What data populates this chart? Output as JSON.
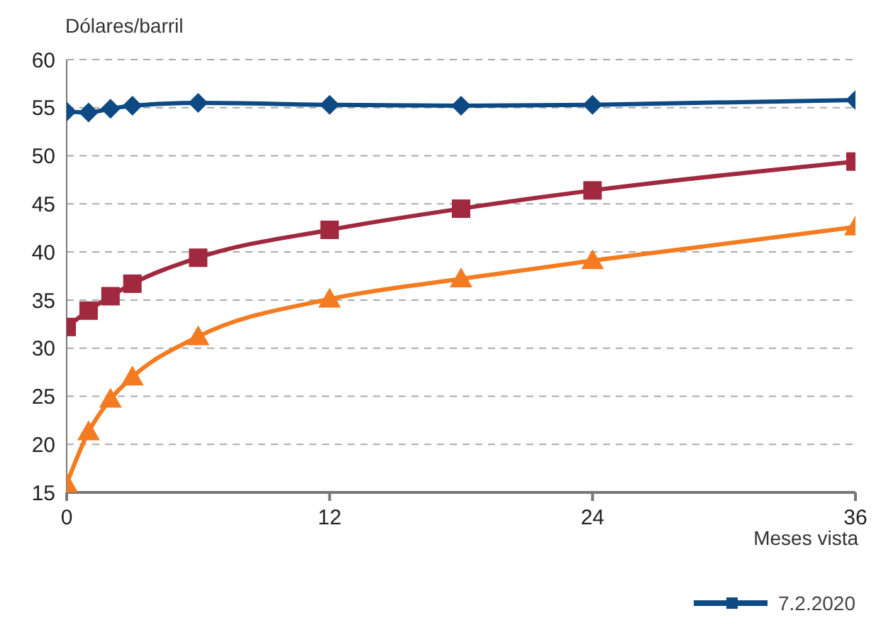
{
  "chart_data": {
    "type": "line",
    "ylabel": "Dólares/barril",
    "xlabel": "Meses vista",
    "x": [
      0,
      1,
      2,
      3,
      6,
      12,
      18,
      24,
      36
    ],
    "series": [
      {
        "name": "7.2.2020",
        "color": "#0d4a84",
        "marker": "diamond",
        "values": [
          54.6,
          54.5,
          54.9,
          55.2,
          55.5,
          55.3,
          55.2,
          55.3,
          55.8
        ]
      },
      {
        "color": "#a0283f",
        "marker": "square",
        "values": [
          32.2,
          33.9,
          35.4,
          36.7,
          39.4,
          42.3,
          44.5,
          46.4,
          49.4
        ]
      },
      {
        "color": "#f47b20",
        "marker": "triangle",
        "values": [
          15.9,
          21.3,
          24.7,
          27.0,
          31.2,
          35.1,
          37.2,
          39.1,
          42.6
        ]
      }
    ],
    "xlim": [
      0,
      36
    ],
    "xticks": [
      0,
      12,
      24,
      36
    ],
    "ylim": [
      15,
      60
    ],
    "yticks": [
      15,
      20,
      25,
      30,
      35,
      40,
      45,
      50,
      55,
      60
    ],
    "grid": "y",
    "legend": "bottom right"
  }
}
